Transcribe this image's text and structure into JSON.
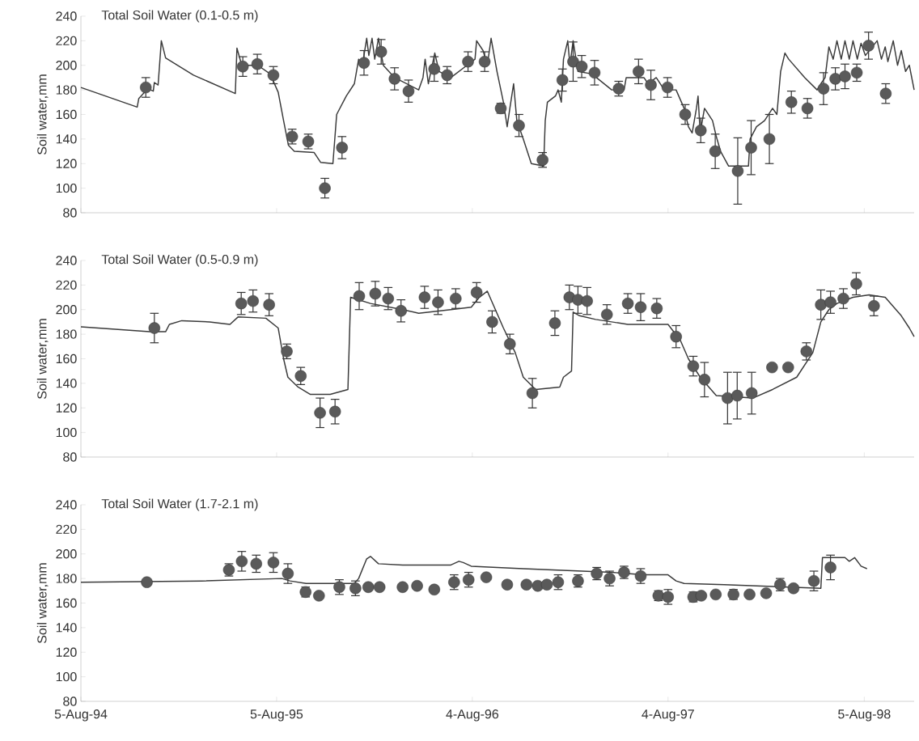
{
  "chart_data": [
    {
      "type": "scatter",
      "title": "Total Soil Water (0.1-0.5 m)",
      "ylabel": "Soil water,mm",
      "xlim": [
        "1994-08-05",
        "1998-11-06"
      ],
      "ylim": [
        80,
        240
      ],
      "yticks": [
        80,
        100,
        120,
        140,
        160,
        180,
        200,
        220,
        240
      ],
      "xticks": [
        {
          "value": "1994-08-05",
          "label": null
        },
        {
          "value": "1995-08-05",
          "label": null
        },
        {
          "value": "1996-08-04",
          "label": null
        },
        {
          "value": "1997-08-04",
          "label": null
        },
        {
          "value": "1998-08-05",
          "label": null
        }
      ],
      "tick_labels": "y",
      "series": [
        {
          "marker": "circle",
          "color": "#5a5a5a",
          "x": [
            "1994-12-04",
            "1995-06-03",
            "1995-06-30",
            "1995-07-30",
            "1995-09-03",
            "1995-10-03",
            "1995-11-03",
            "1995-12-05",
            "1996-01-15",
            "1996-02-16",
            "1996-03-12",
            "1996-04-07",
            "1996-05-25",
            "1996-06-18",
            "1996-07-27",
            "1996-08-27",
            "1996-09-26",
            "1996-10-30",
            "1996-12-13",
            "1997-01-19",
            "1997-02-08",
            "1997-02-24",
            "1997-03-20",
            "1997-05-04",
            "1997-06-10",
            "1997-07-03",
            "1997-08-03",
            "1997-09-05",
            "1997-10-04",
            "1997-10-31",
            "1997-12-12",
            "1998-01-06",
            "1998-02-09",
            "1998-03-22",
            "1998-04-21",
            "1998-05-21",
            "1998-06-12",
            "1998-06-30",
            "1998-07-22",
            "1998-08-13",
            "1998-09-14"
          ],
          "values": [
            182,
            199,
            201,
            192,
            142,
            138,
            100,
            133,
            202,
            211,
            189,
            179,
            197,
            192,
            203,
            203,
            165,
            151,
            123,
            188,
            203,
            199,
            194,
            181,
            195,
            184,
            182,
            160,
            147,
            130,
            114,
            133,
            140,
            170,
            165,
            181,
            189,
            191,
            194,
            216,
            177
          ],
          "errors": [
            8,
            8,
            8,
            7,
            6,
            6,
            8,
            9,
            10,
            10,
            9,
            9,
            10,
            7,
            8,
            8,
            4,
            9,
            6,
            9,
            16,
            9,
            10,
            6,
            10,
            12,
            8,
            8,
            10,
            14,
            27,
            22,
            20,
            9,
            8,
            13,
            9,
            10,
            7,
            11,
            8
          ]
        },
        {
          "type": "line",
          "color": "#3a3a3a",
          "x": [
            "1994-08-05",
            "1994-11-18",
            "1994-11-21",
            "1994-12-08",
            "1994-12-18",
            "1994-12-20",
            "1994-12-27",
            "1995-01-02",
            "1995-01-10",
            "1995-03-03",
            "1995-05-20",
            "1995-05-23",
            "1995-06-01",
            "1995-07-01",
            "1995-07-24",
            "1995-08-08",
            "1995-08-18",
            "1995-08-27",
            "1995-09-07",
            "1995-10-14",
            "1995-10-26",
            "1995-11-18",
            "1995-11-25",
            "1995-12-13",
            "1995-12-28",
            "1996-01-05",
            "1996-01-12",
            "1996-01-20",
            "1996-01-24",
            "1996-01-30",
            "1996-02-04",
            "1996-02-11",
            "1996-02-20",
            "1996-03-12",
            "1996-04-26",
            "1996-05-04",
            "1996-05-08",
            "1996-05-14",
            "1996-05-26",
            "1996-06-03",
            "1996-06-25",
            "1996-07-25",
            "1996-08-09",
            "1996-08-12",
            "1996-08-24",
            "1996-09-01",
            "1996-09-08",
            "1996-09-19",
            "1996-10-01",
            "1996-10-08",
            "1996-10-13",
            "1996-10-20",
            "1996-10-26",
            "1996-11-07",
            "1996-11-22",
            "1996-12-15",
            "1996-12-18",
            "1996-12-22",
            "1997-01-06",
            "1997-01-11",
            "1997-01-17",
            "1997-01-21",
            "1997-01-29",
            "1997-02-02",
            "1997-02-08",
            "1997-02-17",
            "1997-03-15",
            "1997-04-21",
            "1997-05-14",
            "1997-05-18",
            "1997-06-20",
            "1997-06-28",
            "1997-07-13",
            "1997-07-28",
            "1997-08-19",
            "1997-09-03",
            "1997-09-11",
            "1997-09-18",
            "1997-09-26",
            "1997-09-29",
            "1997-10-03",
            "1997-10-11",
            "1997-10-26",
            "1997-11-02",
            "1997-11-10",
            "1997-11-25",
            "1998-01-01",
            "1998-01-04",
            "1998-01-16",
            "1998-01-31",
            "1998-02-15",
            "1998-02-23",
            "1998-03-02",
            "1998-03-10",
            "1998-03-17",
            "1998-04-16",
            "1998-05-09",
            "1998-05-16",
            "1998-05-24",
            "1998-05-31",
            "1998-06-08",
            "1998-06-15",
            "1998-06-23",
            "1998-06-30",
            "1998-07-08",
            "1998-07-15",
            "1998-07-23",
            "1998-07-30",
            "1998-08-07",
            "1998-08-29",
            "1998-09-06",
            "1998-09-13",
            "1998-09-18",
            "1998-09-28",
            "1998-10-06",
            "1998-10-13",
            "1998-10-21",
            "1998-10-28",
            "1998-11-06"
          ],
          "values": [
            182,
            166,
            173,
            181,
            179,
            186,
            184,
            220,
            206,
            192,
            177,
            214,
            200,
            200,
            193,
            178,
            155,
            135,
            130,
            129,
            121,
            120,
            160,
            175,
            185,
            205,
            200,
            222,
            208,
            222,
            205,
            222,
            200,
            190,
            180,
            190,
            205,
            185,
            210,
            195,
            190,
            200,
            205,
            220,
            212,
            200,
            222,
            195,
            170,
            150,
            165,
            185,
            155,
            140,
            120,
            118,
            155,
            170,
            175,
            180,
            170,
            205,
            220,
            200,
            220,
            195,
            193,
            180,
            180,
            190,
            190,
            185,
            190,
            180,
            180,
            165,
            150,
            145,
            165,
            175,
            145,
            165,
            155,
            142,
            130,
            118,
            118,
            140,
            150,
            155,
            165,
            160,
            195,
            210,
            205,
            190,
            180,
            185,
            190,
            215,
            205,
            220,
            205,
            220,
            205,
            220,
            205,
            218,
            208,
            220,
            205,
            215,
            203,
            220,
            200,
            212,
            195,
            200,
            180
          ]
        }
      ]
    },
    {
      "type": "scatter",
      "title": "Total Soil Water (0.5-0.9 m)",
      "ylabel": "Soil water,mm",
      "xlim": [
        "1994-08-05",
        "1998-11-06"
      ],
      "ylim": [
        80,
        240
      ],
      "yticks": [
        80,
        100,
        120,
        140,
        160,
        180,
        200,
        220,
        240
      ],
      "xticks": [
        {
          "value": "1994-08-05",
          "label": null
        },
        {
          "value": "1995-08-05",
          "label": null
        },
        {
          "value": "1996-08-04",
          "label": null
        },
        {
          "value": "1997-08-04",
          "label": null
        },
        {
          "value": "1998-08-05",
          "label": null
        }
      ],
      "tick_labels": "y",
      "series": [
        {
          "marker": "circle",
          "color": "#5a5a5a",
          "x": [
            "1994-12-20",
            "1995-05-31",
            "1995-06-22",
            "1995-07-22",
            "1995-08-24",
            "1995-09-19",
            "1995-10-25",
            "1995-11-22",
            "1996-01-06",
            "1996-02-05",
            "1996-02-29",
            "1996-03-24",
            "1996-05-07",
            "1996-06-01",
            "1996-07-04",
            "1996-08-12",
            "1996-09-10",
            "1996-10-13",
            "1996-11-24",
            "1997-01-05",
            "1997-02-01",
            "1997-02-17",
            "1997-03-06",
            "1997-04-12",
            "1997-05-21",
            "1997-06-14",
            "1997-07-14",
            "1997-08-19",
            "1997-09-20",
            "1997-10-11",
            "1997-11-23",
            "1997-12-11",
            "1998-01-07",
            "1998-02-14",
            "1998-03-16",
            "1998-04-19",
            "1998-05-16",
            "1998-06-03",
            "1998-06-27",
            "1998-07-21",
            "1998-08-23"
          ],
          "values": [
            185,
            205,
            207,
            204,
            166,
            146,
            116,
            117,
            211,
            213,
            209,
            199,
            210,
            206,
            209,
            214,
            190,
            172,
            132,
            189,
            210,
            208,
            207,
            196,
            205,
            202,
            201,
            178,
            154,
            143,
            128,
            130,
            132,
            153,
            153,
            166,
            204,
            206,
            209,
            221,
            203
          ],
          "errors": [
            12,
            9,
            9,
            9,
            6,
            7,
            12,
            10,
            11,
            10,
            9,
            9,
            9,
            10,
            8,
            8,
            9,
            8,
            12,
            10,
            10,
            11,
            11,
            8,
            8,
            11,
            8,
            9,
            8,
            14,
            21,
            19,
            17,
            null,
            null,
            7,
            12,
            9,
            8,
            9,
            8
          ]
        },
        {
          "type": "line",
          "color": "#3a3a3a",
          "x": [
            "1994-08-05",
            "1994-12-11",
            "1995-01-10",
            "1995-01-17",
            "1995-02-09",
            "1995-04-02",
            "1995-05-10",
            "1995-05-25",
            "1995-07-16",
            "1995-08-08",
            "1995-08-18",
            "1995-08-26",
            "1995-09-14",
            "1995-10-07",
            "1995-11-13",
            "1995-12-16",
            "1995-12-21",
            "1996-01-27",
            "1996-03-27",
            "1996-04-26",
            "1996-06-25",
            "1996-08-02",
            "1996-08-17",
            "1996-09-01",
            "1996-09-16",
            "1996-10-01",
            "1996-10-23",
            "1996-11-07",
            "1996-11-30",
            "1997-01-14",
            "1997-01-21",
            "1997-02-05",
            "1997-02-08",
            "1997-02-20",
            "1997-03-22",
            "1997-05-21",
            "1997-08-04",
            "1997-08-27",
            "1997-09-11",
            "1997-10-03",
            "1997-11-02",
            "1998-01-09",
            "1998-02-15",
            "1998-04-01",
            "1998-04-16",
            "1998-05-01",
            "1998-05-16",
            "1998-05-31",
            "1998-06-15",
            "1998-07-15",
            "1998-08-14",
            "1998-09-13",
            "1998-10-13",
            "1998-10-28",
            "1998-11-06"
          ],
          "values": [
            186,
            182,
            182,
            188,
            191,
            190,
            188,
            194,
            193,
            185,
            160,
            145,
            137,
            131,
            131,
            135,
            210,
            205,
            200,
            197,
            200,
            202,
            210,
            215,
            200,
            185,
            165,
            145,
            135,
            137,
            145,
            150,
            198,
            195,
            192,
            188,
            188,
            175,
            160,
            145,
            130,
            128,
            135,
            145,
            155,
            165,
            190,
            200,
            205,
            210,
            212,
            210,
            195,
            185,
            178
          ]
        }
      ]
    },
    {
      "type": "scatter",
      "title": "Total Soil Water (1.7-2.1 m)",
      "ylabel": "Soil water,mm",
      "xlim": [
        "1994-08-05",
        "1998-11-06"
      ],
      "ylim": [
        80,
        240
      ],
      "yticks": [
        80,
        100,
        120,
        140,
        160,
        180,
        200,
        220,
        240
      ],
      "xticks": [
        {
          "value": "1994-08-05",
          "label": "5-Aug-94"
        },
        {
          "value": "1995-08-05",
          "label": "5-Aug-95"
        },
        {
          "value": "1996-08-04",
          "label": "4-Aug-96"
        },
        {
          "value": "1997-08-04",
          "label": "4-Aug-97"
        },
        {
          "value": "1998-08-05",
          "label": "5-Aug-98"
        }
      ],
      "series": [
        {
          "marker": "circle",
          "color": "#5a5a5a",
          "x": [
            "1994-12-06",
            "1995-05-08",
            "1995-06-01",
            "1995-06-28",
            "1995-07-30",
            "1995-08-26",
            "1995-09-28",
            "1995-10-23",
            "1995-11-30",
            "1995-12-30",
            "1996-01-23",
            "1996-02-13",
            "1996-03-27",
            "1996-04-23",
            "1996-05-25",
            "1996-07-01",
            "1996-07-28",
            "1996-08-30",
            "1996-10-08",
            "1996-11-13",
            "1996-12-04",
            "1996-12-21",
            "1997-01-11",
            "1997-02-17",
            "1997-03-24",
            "1997-04-17",
            "1997-05-14",
            "1997-06-14",
            "1997-07-17",
            "1997-08-04",
            "1997-09-20",
            "1997-10-05",
            "1997-11-01",
            "1997-12-04",
            "1998-01-03",
            "1998-02-03",
            "1998-03-01",
            "1998-03-26",
            "1998-05-03",
            "1998-06-03"
          ],
          "values": [
            177,
            187,
            194,
            192,
            193,
            184,
            169,
            166,
            173,
            172,
            173,
            173,
            173,
            174,
            171,
            177,
            179,
            181,
            175,
            175,
            174,
            175,
            177,
            178,
            184,
            180,
            185,
            182,
            166,
            165,
            165,
            166,
            167,
            167,
            167,
            168,
            175,
            172,
            178,
            189
          ],
          "errors": [
            null,
            5,
            8,
            7,
            8,
            8,
            4,
            null,
            6,
            6,
            null,
            null,
            null,
            null,
            null,
            6,
            6,
            null,
            null,
            null,
            null,
            null,
            6,
            5,
            5,
            6,
            5,
            6,
            4,
            6,
            4,
            null,
            null,
            4,
            null,
            null,
            5,
            null,
            8,
            10
          ]
        },
        {
          "type": "line",
          "color": "#3a3a3a",
          "x": [
            "1994-08-05",
            "1995-03-18",
            "1995-08-15",
            "1995-08-30",
            "1995-09-29",
            "1995-12-28",
            "1996-01-05",
            "1996-01-20",
            "1996-01-27",
            "1996-02-11",
            "1996-03-27",
            "1996-06-25",
            "1996-07-10",
            "1996-07-18",
            "1996-08-02",
            "1996-11-07",
            "1997-04-21",
            "1997-06-20",
            "1997-08-04",
            "1997-08-19",
            "1997-09-03",
            "1997-11-17",
            "1998-05-16",
            "1998-05-19",
            "1998-06-30",
            "1998-07-08",
            "1998-07-18",
            "1998-07-30",
            "1998-08-10"
          ],
          "values": [
            177,
            178,
            180,
            178,
            176,
            176,
            180,
            196,
            198,
            192,
            191,
            191,
            194,
            193,
            190,
            188,
            185,
            183,
            183,
            178,
            176,
            175,
            172,
            197,
            197,
            194,
            197,
            190,
            188
          ]
        }
      ]
    }
  ]
}
